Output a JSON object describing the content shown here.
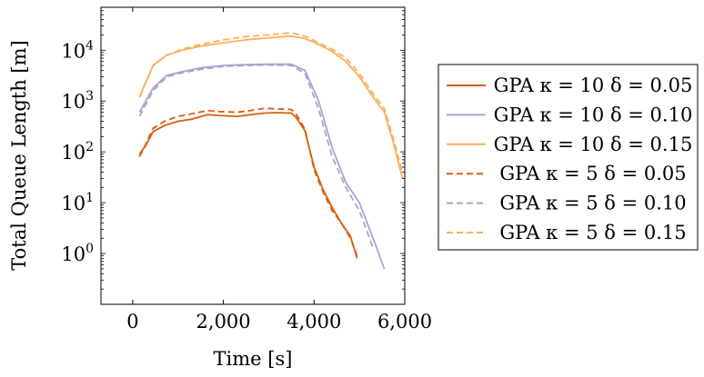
{
  "chart_data": {
    "type": "line",
    "xlabel": "Time [s]",
    "ylabel": "Total Queue Length [m]",
    "xscale": "linear",
    "yscale": "log",
    "xlim": [
      -700,
      6000
    ],
    "ylim": [
      0.1,
      70000
    ],
    "xticks": [
      0,
      2000,
      4000,
      6000
    ],
    "xtick_labels": [
      "0",
      "2,000",
      "4,000",
      "6,000"
    ],
    "yticks": [
      1,
      10,
      100,
      1000,
      10000
    ],
    "ytick_labels": [
      {
        "base": "10",
        "exp": "0"
      },
      {
        "base": "10",
        "exp": "1"
      },
      {
        "base": "10",
        "exp": "2"
      },
      {
        "base": "10",
        "exp": "3"
      },
      {
        "base": "10",
        "exp": "4"
      }
    ],
    "grid": false,
    "legend_position": "outside-right",
    "series": [
      {
        "name": "GPA κ = 10 δ = 0.05",
        "color": "#d95f0e",
        "dash": "solid",
        "x": [
          150,
          300,
          450,
          700,
          1000,
          1300,
          1650,
          1900,
          2300,
          2600,
          2900,
          3200,
          3500,
          3600,
          3800,
          4000,
          4200,
          4400,
          4600,
          4800,
          4950
        ],
        "y": [
          90,
          140,
          250,
          330,
          400,
          440,
          540,
          520,
          500,
          540,
          580,
          590,
          580,
          480,
          260,
          50,
          18,
          8,
          4,
          2.2,
          0.8
        ]
      },
      {
        "name": "GPA κ = 10 δ = 0.10",
        "color": "#a8a4cf",
        "dash": "solid",
        "x": [
          150,
          450,
          750,
          1100,
          1500,
          2000,
          2500,
          3000,
          3500,
          3800,
          4100,
          4400,
          4700,
          5000,
          5300,
          5550
        ],
        "y": [
          600,
          1800,
          3200,
          3800,
          4500,
          5000,
          5200,
          5300,
          5300,
          4000,
          1000,
          120,
          25,
          10,
          2,
          0.5
        ]
      },
      {
        "name": "GPA κ = 10 δ = 0.15",
        "color": "#fdae5b",
        "dash": "solid",
        "x": [
          150,
          450,
          750,
          1100,
          1500,
          2000,
          2500,
          3000,
          3500,
          3800,
          4100,
          4400,
          4700,
          5000,
          5300,
          5550,
          5750,
          5950
        ],
        "y": [
          1200,
          5000,
          8000,
          10000,
          12000,
          14000,
          16000,
          17500,
          19000,
          17000,
          13000,
          9500,
          6000,
          3000,
          1200,
          600,
          150,
          30
        ]
      },
      {
        "name": "GPA κ = 5 δ = 0.05",
        "color": "#d95f0e",
        "dash": "dashed",
        "x": [
          150,
          300,
          450,
          700,
          1000,
          1300,
          1650,
          1900,
          2300,
          2600,
          2900,
          3200,
          3500,
          3600,
          3800,
          4000,
          4200,
          4400,
          4600,
          4800,
          4950
        ],
        "y": [
          80,
          150,
          290,
          400,
          500,
          560,
          650,
          620,
          600,
          650,
          720,
          700,
          680,
          560,
          280,
          45,
          16,
          7,
          4,
          2,
          0.9
        ]
      },
      {
        "name": "GPA κ = 5 δ = 0.10",
        "color": "#a8a4cf",
        "dash": "dashed",
        "x": [
          150,
          450,
          750,
          1100,
          1500,
          2000,
          2500,
          3000,
          3500,
          3800,
          4100,
          4400,
          4700,
          5000,
          5300
        ],
        "y": [
          500,
          1600,
          3000,
          3600,
          4200,
          4800,
          5000,
          5100,
          5000,
          3500,
          700,
          80,
          20,
          7,
          1.3
        ]
      },
      {
        "name": "GPA κ = 5 δ = 0.15",
        "color": "#fdae5b",
        "dash": "dashed",
        "x": [
          150,
          450,
          750,
          1100,
          1500,
          2000,
          2500,
          3000,
          3500,
          3800,
          4100,
          4400,
          4700,
          5000,
          5300,
          5550,
          5750,
          5950
        ],
        "y": [
          1200,
          5000,
          8000,
          10500,
          13000,
          16000,
          18500,
          20000,
          22000,
          19000,
          14000,
          10500,
          7000,
          3500,
          1400,
          700,
          180,
          40
        ]
      }
    ]
  }
}
